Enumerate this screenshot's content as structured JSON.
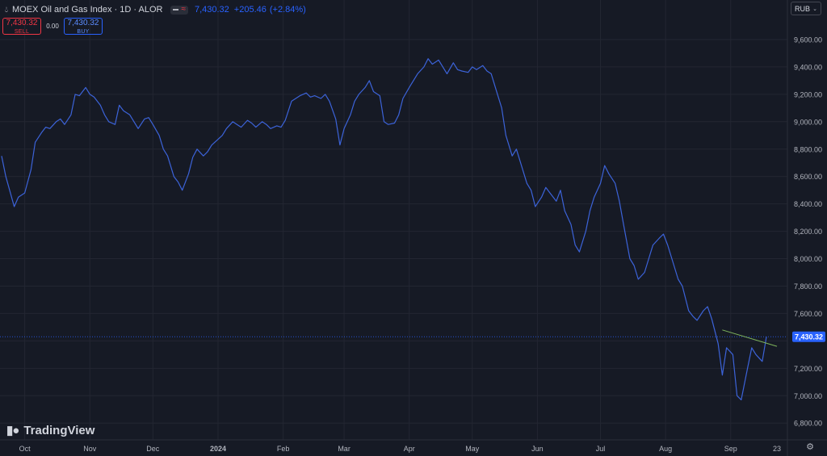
{
  "header": {
    "title": "MOEX Oil and Gas Index · 1D · ALOR",
    "price": "7,430.32",
    "change": "+205.46",
    "change_pct": "(+2.84%)"
  },
  "trade": {
    "sell_price": "7,430.32",
    "sell_label": "SELL",
    "spread": "0.00",
    "buy_price": "7,430.32",
    "buy_label": "BUY"
  },
  "currency": "RUB",
  "brand": "TradingView",
  "colors": {
    "background": "#161a25",
    "grid": "#232632",
    "line": "#3c63d9",
    "trendline": "#7fb55c",
    "price_tag": "#2962ff",
    "sell": "#f23645",
    "axis_text": "#b2b5be"
  },
  "chart_data": {
    "type": "line",
    "title": "MOEX Oil and Gas Index · 1D · ALOR",
    "ylim": [
      6760,
      9700
    ],
    "y_ticks": [
      "9,600.00",
      "9,400.00",
      "9,200.00",
      "9,000.00",
      "8,800.00",
      "8,600.00",
      "8,400.00",
      "8,200.00",
      "8,000.00",
      "7,800.00",
      "7,600.00",
      "7,200.00",
      "7,000.00",
      "6,800.00"
    ],
    "x_ticks": [
      {
        "label": "Oct",
        "date": "2023-10-01"
      },
      {
        "label": "Nov",
        "date": "2023-11-01"
      },
      {
        "label": "Dec",
        "date": "2023-12-01"
      },
      {
        "label": "2024",
        "date": "2024-01-01"
      },
      {
        "label": "Feb",
        "date": "2024-02-01"
      },
      {
        "label": "Mar",
        "date": "2024-03-01"
      },
      {
        "label": "Apr",
        "date": "2024-04-01"
      },
      {
        "label": "May",
        "date": "2024-05-01"
      },
      {
        "label": "Jun",
        "date": "2024-06-01"
      },
      {
        "label": "Jul",
        "date": "2024-07-01"
      },
      {
        "label": "Aug",
        "date": "2024-08-01"
      },
      {
        "label": "Sep",
        "date": "2024-09-01"
      },
      {
        "label": "23",
        "date": "2024-09-23"
      }
    ],
    "last_price": 7430.32,
    "last_price_label": "7,430.32",
    "series": [
      {
        "points": [
          [
            "2023-09-20",
            8750
          ],
          [
            "2023-09-22",
            8600
          ],
          [
            "2023-09-26",
            8380
          ],
          [
            "2023-09-28",
            8450
          ],
          [
            "2023-10-01",
            8480
          ],
          [
            "2023-10-04",
            8650
          ],
          [
            "2023-10-06",
            8850
          ],
          [
            "2023-10-09",
            8920
          ],
          [
            "2023-10-11",
            8960
          ],
          [
            "2023-10-13",
            8950
          ],
          [
            "2023-10-16",
            9000
          ],
          [
            "2023-10-18",
            9020
          ],
          [
            "2023-10-20",
            8980
          ],
          [
            "2023-10-23",
            9050
          ],
          [
            "2023-10-25",
            9200
          ],
          [
            "2023-10-27",
            9190
          ],
          [
            "2023-10-30",
            9250
          ],
          [
            "2023-11-01",
            9200
          ],
          [
            "2023-11-03",
            9180
          ],
          [
            "2023-11-06",
            9120
          ],
          [
            "2023-11-08",
            9050
          ],
          [
            "2023-11-10",
            9000
          ],
          [
            "2023-11-13",
            8980
          ],
          [
            "2023-11-15",
            9120
          ],
          [
            "2023-11-17",
            9080
          ],
          [
            "2023-11-20",
            9050
          ],
          [
            "2023-11-22",
            9000
          ],
          [
            "2023-11-24",
            8950
          ],
          [
            "2023-11-27",
            9020
          ],
          [
            "2023-11-29",
            9030
          ],
          [
            "2023-12-01",
            8980
          ],
          [
            "2023-12-04",
            8900
          ],
          [
            "2023-12-06",
            8800
          ],
          [
            "2023-12-08",
            8750
          ],
          [
            "2023-12-11",
            8600
          ],
          [
            "2023-12-13",
            8560
          ],
          [
            "2023-12-15",
            8500
          ],
          [
            "2023-12-18",
            8620
          ],
          [
            "2023-12-20",
            8740
          ],
          [
            "2023-12-22",
            8800
          ],
          [
            "2023-12-25",
            8750
          ],
          [
            "2023-12-27",
            8780
          ],
          [
            "2023-12-29",
            8830
          ],
          [
            "2024-01-03",
            8900
          ],
          [
            "2024-01-05",
            8950
          ],
          [
            "2024-01-08",
            9000
          ],
          [
            "2024-01-10",
            8980
          ],
          [
            "2024-01-12",
            8960
          ],
          [
            "2024-01-15",
            9010
          ],
          [
            "2024-01-17",
            8990
          ],
          [
            "2024-01-19",
            8960
          ],
          [
            "2024-01-22",
            9000
          ],
          [
            "2024-01-24",
            8980
          ],
          [
            "2024-01-26",
            8950
          ],
          [
            "2024-01-29",
            8970
          ],
          [
            "2024-01-31",
            8960
          ],
          [
            "2024-02-02",
            9010
          ],
          [
            "2024-02-05",
            9150
          ],
          [
            "2024-02-07",
            9170
          ],
          [
            "2024-02-09",
            9190
          ],
          [
            "2024-02-12",
            9210
          ],
          [
            "2024-02-14",
            9180
          ],
          [
            "2024-02-16",
            9190
          ],
          [
            "2024-02-19",
            9170
          ],
          [
            "2024-02-21",
            9200
          ],
          [
            "2024-02-23",
            9150
          ],
          [
            "2024-02-26",
            9020
          ],
          [
            "2024-02-28",
            8830
          ],
          [
            "2024-03-01",
            8950
          ],
          [
            "2024-03-04",
            9050
          ],
          [
            "2024-03-06",
            9150
          ],
          [
            "2024-03-08",
            9200
          ],
          [
            "2024-03-11",
            9250
          ],
          [
            "2024-03-13",
            9300
          ],
          [
            "2024-03-15",
            9220
          ],
          [
            "2024-03-18",
            9190
          ],
          [
            "2024-03-20",
            9000
          ],
          [
            "2024-03-22",
            8980
          ],
          [
            "2024-03-25",
            8990
          ],
          [
            "2024-03-27",
            9050
          ],
          [
            "2024-03-29",
            9170
          ],
          [
            "2024-04-01",
            9250
          ],
          [
            "2024-04-03",
            9300
          ],
          [
            "2024-04-05",
            9350
          ],
          [
            "2024-04-08",
            9400
          ],
          [
            "2024-04-10",
            9460
          ],
          [
            "2024-04-12",
            9420
          ],
          [
            "2024-04-15",
            9450
          ],
          [
            "2024-04-17",
            9400
          ],
          [
            "2024-04-19",
            9350
          ],
          [
            "2024-04-22",
            9430
          ],
          [
            "2024-04-24",
            9380
          ],
          [
            "2024-04-26",
            9370
          ],
          [
            "2024-04-29",
            9360
          ],
          [
            "2024-05-01",
            9400
          ],
          [
            "2024-05-03",
            9380
          ],
          [
            "2024-05-06",
            9410
          ],
          [
            "2024-05-08",
            9370
          ],
          [
            "2024-05-10",
            9350
          ],
          [
            "2024-05-13",
            9200
          ],
          [
            "2024-05-15",
            9100
          ],
          [
            "2024-05-17",
            8900
          ],
          [
            "2024-05-20",
            8750
          ],
          [
            "2024-05-22",
            8800
          ],
          [
            "2024-05-24",
            8700
          ],
          [
            "2024-05-27",
            8550
          ],
          [
            "2024-05-29",
            8500
          ],
          [
            "2024-05-31",
            8380
          ],
          [
            "2024-06-03",
            8450
          ],
          [
            "2024-06-05",
            8520
          ],
          [
            "2024-06-07",
            8480
          ],
          [
            "2024-06-10",
            8420
          ],
          [
            "2024-06-12",
            8500
          ],
          [
            "2024-06-14",
            8350
          ],
          [
            "2024-06-17",
            8250
          ],
          [
            "2024-06-19",
            8100
          ],
          [
            "2024-06-21",
            8050
          ],
          [
            "2024-06-24",
            8200
          ],
          [
            "2024-06-26",
            8350
          ],
          [
            "2024-06-28",
            8450
          ],
          [
            "2024-07-01",
            8550
          ],
          [
            "2024-07-03",
            8680
          ],
          [
            "2024-07-05",
            8620
          ],
          [
            "2024-07-08",
            8550
          ],
          [
            "2024-07-10",
            8420
          ],
          [
            "2024-07-12",
            8250
          ],
          [
            "2024-07-15",
            8000
          ],
          [
            "2024-07-17",
            7950
          ],
          [
            "2024-07-19",
            7850
          ],
          [
            "2024-07-22",
            7900
          ],
          [
            "2024-07-24",
            8000
          ],
          [
            "2024-07-26",
            8100
          ],
          [
            "2024-07-29",
            8150
          ],
          [
            "2024-07-31",
            8180
          ],
          [
            "2024-08-02",
            8100
          ],
          [
            "2024-08-05",
            7950
          ],
          [
            "2024-08-07",
            7850
          ],
          [
            "2024-08-09",
            7800
          ],
          [
            "2024-08-12",
            7620
          ],
          [
            "2024-08-14",
            7580
          ],
          [
            "2024-08-16",
            7550
          ],
          [
            "2024-08-19",
            7620
          ],
          [
            "2024-08-21",
            7650
          ],
          [
            "2024-08-23",
            7560
          ],
          [
            "2024-08-26",
            7380
          ],
          [
            "2024-08-28",
            7150
          ],
          [
            "2024-08-30",
            7350
          ],
          [
            "2024-09-02",
            7300
          ],
          [
            "2024-09-04",
            7000
          ],
          [
            "2024-09-06",
            6970
          ],
          [
            "2024-09-09",
            7200
          ],
          [
            "2024-09-11",
            7350
          ],
          [
            "2024-09-13",
            7300
          ],
          [
            "2024-09-16",
            7250
          ],
          [
            "2024-09-18",
            7430.32
          ]
        ]
      }
    ],
    "trendline": [
      [
        "2024-08-28",
        7480
      ],
      [
        "2024-09-23",
        7360
      ]
    ],
    "grid": true
  }
}
